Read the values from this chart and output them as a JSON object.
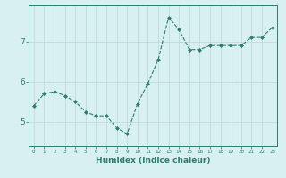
{
  "x": [
    0,
    1,
    2,
    3,
    4,
    5,
    6,
    7,
    8,
    9,
    10,
    11,
    12,
    13,
    14,
    15,
    16,
    17,
    18,
    19,
    20,
    21,
    22,
    23
  ],
  "y": [
    5.4,
    5.7,
    5.75,
    5.65,
    5.5,
    5.25,
    5.15,
    5.15,
    4.85,
    4.7,
    5.45,
    5.95,
    6.55,
    7.6,
    7.3,
    6.8,
    6.8,
    6.9,
    6.9,
    6.9,
    6.9,
    7.1,
    7.1,
    7.35
  ],
  "line_color": "#2e7d6e",
  "marker": "D",
  "marker_size": 2,
  "bg_color": "#d8f0f0",
  "grid_color": "#b8d8d8",
  "axis_color": "#2e7d6e",
  "xlabel": "Humidex (Indice chaleur)",
  "xlabel_fontsize": 6.5,
  "yticks": [
    5,
    6,
    7
  ],
  "xtick_labels": [
    "0",
    "1",
    "2",
    "3",
    "4",
    "5",
    "6",
    "7",
    "8",
    "9",
    "10",
    "11",
    "12",
    "13",
    "14",
    "15",
    "16",
    "17",
    "18",
    "19",
    "20",
    "21",
    "22",
    "23"
  ],
  "ylim": [
    4.4,
    7.9
  ],
  "xlim": [
    -0.5,
    23.5
  ]
}
